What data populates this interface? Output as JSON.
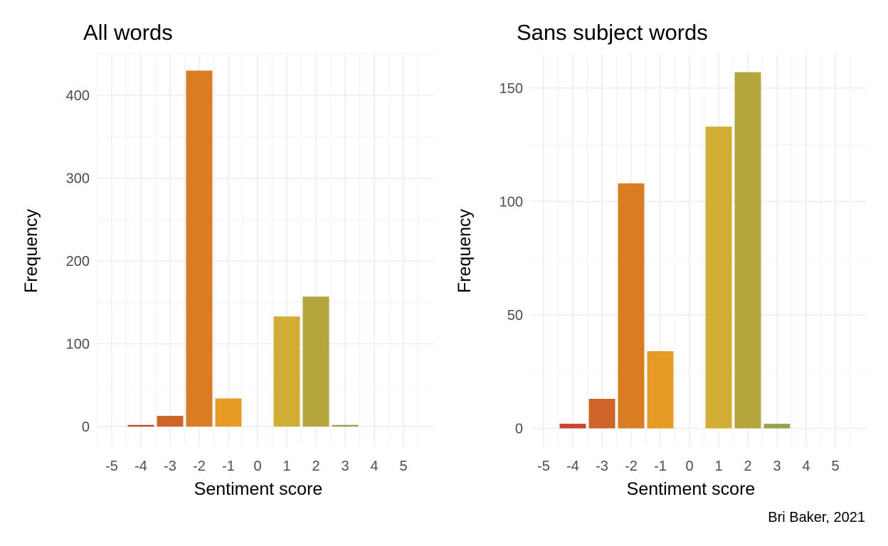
{
  "caption": "Bri Baker, 2021",
  "colors": {
    "-4": "#c8442a",
    "-3": "#cd6428",
    "-2": "#d97d24",
    "-1": "#e59b26",
    "1": "#d2ad36",
    "2": "#b5a53d",
    "3": "#97a24b"
  },
  "chart_data": [
    {
      "type": "bar",
      "title": "All words",
      "xlabel": "Sentiment score",
      "ylabel": "Frequency",
      "categories": [
        -5,
        -4,
        -3,
        -2,
        -1,
        0,
        1,
        2,
        3,
        4,
        5
      ],
      "tick_labels": [
        "-5",
        "-4",
        "-3",
        "-2",
        "-1",
        "0",
        "1",
        "2",
        "3",
        "4",
        "5"
      ],
      "values": [
        0,
        2,
        13,
        430,
        34,
        0,
        133,
        157,
        2,
        0,
        0
      ],
      "yticks": [
        0,
        100,
        200,
        300,
        400
      ],
      "ylim": [
        -24,
        450
      ],
      "grid": true,
      "legend": "none"
    },
    {
      "type": "bar",
      "title": "Sans subject words",
      "xlabel": "Sentiment score",
      "ylabel": "Frequency",
      "categories": [
        -5,
        -4,
        -3,
        -2,
        -1,
        0,
        1,
        2,
        3,
        4,
        5
      ],
      "tick_labels": [
        "-5",
        "-4",
        "-3",
        "-2",
        "-1",
        "0",
        "1",
        "2",
        "3",
        "4",
        "5"
      ],
      "values": [
        0,
        2,
        13,
        108,
        34,
        0,
        133,
        157,
        2,
        0,
        0
      ],
      "yticks": [
        0,
        50,
        100,
        150
      ],
      "ylim": [
        -8,
        165
      ],
      "grid": true,
      "legend": "none"
    }
  ]
}
